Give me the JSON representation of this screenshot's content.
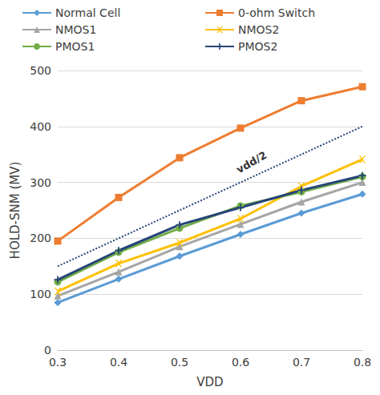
{
  "chart_data": {
    "type": "line",
    "x_label": "VDD",
    "y_label": "HOLD-SNM (MV)",
    "categories": [
      "0.3",
      "0.4",
      "0.5",
      "0.6",
      "0.7",
      "0.8"
    ],
    "ylim": [
      0,
      500
    ],
    "yticks": [
      0,
      100,
      200,
      300,
      400,
      500
    ],
    "grid": true,
    "legend": "top",
    "series": [
      {
        "name": "Normal Cell",
        "color": "#5b9bd5",
        "marker": "diamond",
        "values": [
          85,
          127,
          168,
          207,
          245,
          279
        ]
      },
      {
        "name": "0-ohm Switch",
        "color": "#ed7d31",
        "marker": "square",
        "values": [
          195,
          273,
          344,
          397,
          446,
          471
        ]
      },
      {
        "name": "NMOS1",
        "color": "#a5a5a5",
        "marker": "triangle",
        "values": [
          97,
          140,
          185,
          225,
          265,
          300
        ]
      },
      {
        "name": "NMOS2",
        "color": "#ffc000",
        "marker": "x",
        "values": [
          105,
          155,
          192,
          235,
          293,
          341
        ]
      },
      {
        "name": "PMOS1",
        "color": "#70ad47",
        "marker": "circle",
        "values": [
          122,
          175,
          218,
          258,
          283,
          310
        ]
      },
      {
        "name": "PMOS2",
        "color": "#264478",
        "marker": "plus",
        "values": [
          126,
          178,
          224,
          255,
          286,
          312
        ]
      }
    ],
    "annotations": [
      {
        "text": "vdd/2",
        "color": "#264478",
        "line_style": "dotted",
        "values": [
          150,
          200,
          250,
          300,
          350,
          400
        ]
      }
    ]
  }
}
